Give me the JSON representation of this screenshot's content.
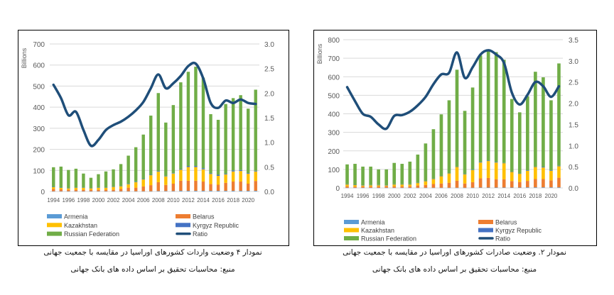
{
  "colors": {
    "Armenia": "#5b9bd5",
    "Belarus": "#ed7d31",
    "Kazakhstan": "#ffc000",
    "Kyrgyz Republic": "#4472c4",
    "Russian Federation": "#70ad47",
    "Ratio": "#1f4e79"
  },
  "chart_data": [
    {
      "type": "bar+line",
      "stacked": true,
      "ylabel": "Billions",
      "ylim": [
        0,
        700
      ],
      "yticks": [
        0,
        100,
        200,
        300,
        400,
        500,
        600,
        700
      ],
      "y2lim": [
        0,
        3.0
      ],
      "y2ticks": [
        "0.0",
        "0.5",
        "1.0",
        "1.5",
        "2.0",
        "2.5",
        "3.0"
      ],
      "grid": true,
      "legend": "bottom",
      "legend_entries": [
        "Armenia",
        "Belarus",
        "Kazakhstan",
        "Kyrgyz Republic",
        "Russian Federation",
        "Ratio"
      ],
      "x": [
        1994,
        1995,
        1996,
        1997,
        1998,
        1999,
        2000,
        2001,
        2002,
        2003,
        2004,
        2005,
        2006,
        2007,
        2008,
        2009,
        2010,
        2011,
        2012,
        2013,
        2014,
        2015,
        2016,
        2017,
        2018,
        2019,
        2020,
        2021
      ],
      "xtick_labels": [
        "1994",
        "1996",
        "1998",
        "2000",
        "2002",
        "2004",
        "2006",
        "2008",
        "2010",
        "2012",
        "2014",
        "2016",
        "2018",
        "2020"
      ],
      "series": [
        {
          "name": "Armenia",
          "values": [
            1,
            1,
            1,
            1,
            1,
            1,
            1,
            1,
            1,
            1,
            1,
            1,
            1,
            1,
            2,
            2,
            2,
            3,
            3,
            3,
            3,
            3,
            3,
            3,
            3,
            3,
            3,
            3
          ]
        },
        {
          "name": "Belarus",
          "values": [
            11,
            9,
            7,
            7,
            7,
            7,
            7,
            7,
            7,
            11,
            17,
            17,
            23,
            29,
            42,
            29,
            35,
            48,
            48,
            48,
            44,
            32,
            29,
            38,
            44,
            44,
            34,
            47
          ]
        },
        {
          "name": "Kazakhstan",
          "values": [
            9,
            7,
            7,
            10,
            10,
            7,
            10,
            10,
            14,
            13,
            16,
            26,
            33,
            47,
            50,
            40,
            48,
            52,
            65,
            65,
            58,
            48,
            42,
            40,
            48,
            50,
            47,
            45
          ]
        },
        {
          "name": "Kyrgyz Republic",
          "values": [
            1,
            2,
            1,
            1,
            1,
            1,
            1,
            1,
            1,
            1,
            2,
            2,
            2,
            2,
            3,
            2,
            2,
            3,
            5,
            5,
            5,
            3,
            5,
            3,
            5,
            5,
            3,
            3
          ]
        },
        {
          "name": "Russian Federation",
          "values": [
            93,
            99,
            86,
            89,
            66,
            49,
            63,
            76,
            82,
            104,
            134,
            164,
            211,
            281,
            370,
            254,
            323,
            412,
            447,
            471,
            430,
            281,
            261,
            331,
            343,
            355,
            306,
            385
          ]
        }
      ],
      "line": {
        "name": "Ratio",
        "axis": "right",
        "values": [
          2.17,
          1.9,
          1.55,
          1.62,
          1.25,
          0.93,
          1.05,
          1.25,
          1.35,
          1.42,
          1.52,
          1.65,
          1.82,
          2.1,
          2.38,
          2.1,
          2.2,
          2.35,
          2.55,
          2.6,
          2.3,
          1.8,
          1.7,
          1.85,
          1.8,
          1.87,
          1.8,
          1.78
        ]
      },
      "caption": "نمودار ۴ وضعیت واردات کشورهای اوراسیا در مقایسه با جمعیت جهانی",
      "source": "منبع: محاسبات تحقیق بر اساس داده های بانک جهانی"
    },
    {
      "type": "bar+line",
      "stacked": true,
      "ylabel": "Billions",
      "ylim": [
        0,
        800
      ],
      "yticks": [
        0,
        100,
        200,
        300,
        400,
        500,
        600,
        700,
        800
      ],
      "y2lim": [
        0,
        3.5
      ],
      "y2ticks": [
        "0.0",
        "0.5",
        "1.0",
        "1.5",
        "2.0",
        "2.5",
        "3.0",
        "3.5"
      ],
      "grid": true,
      "legend": "bottom",
      "legend_entries": [
        "Armenia",
        "Belarus",
        "Kazakhstan",
        "Kyrgyz Republic",
        "Russian Federation",
        "Ratio"
      ],
      "x": [
        1994,
        1995,
        1996,
        1997,
        1998,
        1999,
        2000,
        2001,
        2002,
        2003,
        2004,
        2005,
        2006,
        2007,
        2008,
        2009,
        2010,
        2011,
        2012,
        2013,
        2014,
        2015,
        2016,
        2017,
        2018,
        2019,
        2020,
        2021
      ],
      "xtick_labels": [
        "1994",
        "1996",
        "1998",
        "2000",
        "2002",
        "2004",
        "2006",
        "2008",
        "2010",
        "2012",
        "2014",
        "2016",
        "2018",
        "2020"
      ],
      "series": [
        {
          "name": "Armenia",
          "values": [
            1,
            1,
            1,
            1,
            1,
            1,
            1,
            1,
            1,
            1,
            1,
            1,
            1,
            1,
            1,
            1,
            1,
            2,
            2,
            2,
            2,
            2,
            2,
            3,
            3,
            3,
            3,
            3
          ]
        },
        {
          "name": "Belarus",
          "values": [
            8,
            6,
            7,
            7,
            7,
            8,
            8,
            8,
            8,
            12,
            15,
            20,
            23,
            27,
            38,
            23,
            30,
            50,
            52,
            45,
            45,
            35,
            30,
            35,
            45,
            45,
            38,
            52
          ]
        },
        {
          "name": "Kazakhstan",
          "values": [
            10,
            9,
            5,
            7,
            7,
            4,
            10,
            10,
            10,
            14,
            21,
            28,
            40,
            51,
            75,
            49,
            65,
            85,
            91,
            90,
            87,
            50,
            45,
            54,
            66,
            62,
            51,
            62
          ]
        },
        {
          "name": "Kyrgyz Republic",
          "values": [
            1,
            1,
            2,
            1,
            1,
            2,
            1,
            1,
            1,
            1,
            1,
            1,
            1,
            1,
            1,
            2,
            2,
            3,
            3,
            3,
            1,
            1,
            1,
            3,
            1,
            3,
            3,
            3
          ]
        },
        {
          "name": "Russian Federation",
          "values": [
            107,
            113,
            100,
            99,
            84,
            85,
            115,
            110,
            122,
            152,
            202,
            267,
            332,
            393,
            523,
            341,
            444,
            575,
            590,
            593,
            557,
            392,
            330,
            400,
            512,
            484,
            378,
            552
          ]
        }
      ],
      "line": {
        "name": "Ratio",
        "axis": "right",
        "values": [
          2.38,
          2.05,
          1.75,
          1.68,
          1.5,
          1.4,
          1.7,
          1.72,
          1.8,
          1.95,
          2.15,
          2.45,
          2.68,
          2.72,
          3.2,
          2.6,
          2.85,
          3.15,
          3.25,
          3.15,
          2.95,
          2.25,
          1.97,
          2.2,
          2.5,
          2.4,
          2.15,
          2.4
        ]
      },
      "caption": "نمودار ۲. وضعیت صادرات کشورهای اوراسیا در مقایسه با جمعیت جهانی",
      "source": "منبع: محاسبات تحقیق بر اساس داده های بانک جهانی"
    }
  ]
}
